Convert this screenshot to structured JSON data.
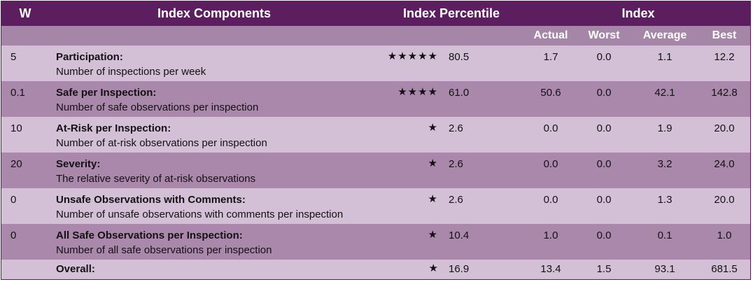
{
  "header": {
    "weight": "W",
    "components": "Index Components",
    "percentile": "Index Percentile",
    "index": "Index"
  },
  "subheader": [
    "Actual",
    "Worst",
    "Average",
    "Best"
  ],
  "rows": [
    {
      "weight": "5",
      "name": "Participation:",
      "description": "Number of inspections per week",
      "stars": "★★★★★",
      "percentile": "80.5",
      "index": [
        "1.7",
        "0.0",
        "1.1",
        "12.2"
      ]
    },
    {
      "weight": "0.1",
      "name": "Safe per Inspection:",
      "description": "Number of safe observations per inspection",
      "stars": "★★★★",
      "percentile": "61.0",
      "index": [
        "50.6",
        "0.0",
        "42.1",
        "142.8"
      ]
    },
    {
      "weight": "10",
      "name": "At-Risk per Inspection:",
      "description": "Number of at-risk observations per inspection",
      "stars": "★",
      "percentile": "2.6",
      "index": [
        "0.0",
        "0.0",
        "1.9",
        "20.0"
      ]
    },
    {
      "weight": "20",
      "name": "Severity:",
      "description": "The relative severity of at-risk observations",
      "stars": "★",
      "percentile": "2.6",
      "index": [
        "0.0",
        "0.0",
        "3.2",
        "24.0"
      ]
    },
    {
      "weight": "0",
      "name": "Unsafe Observations with Comments:",
      "description": "Number of unsafe observations with comments per inspection",
      "stars": "★",
      "percentile": "2.6",
      "index": [
        "0.0",
        "0.0",
        "1.3",
        "20.0"
      ]
    },
    {
      "weight": "0",
      "name": "All Safe Observations per Inspection:",
      "description": "Number of all safe observations per inspection",
      "stars": "★",
      "percentile": "10.4",
      "index": [
        "1.0",
        "0.0",
        "0.1",
        "1.0"
      ]
    }
  ],
  "overall": {
    "name": "Overall:",
    "stars": "★",
    "percentile": "16.9",
    "index": [
      "13.4",
      "1.5",
      "93.1",
      "681.5"
    ]
  }
}
